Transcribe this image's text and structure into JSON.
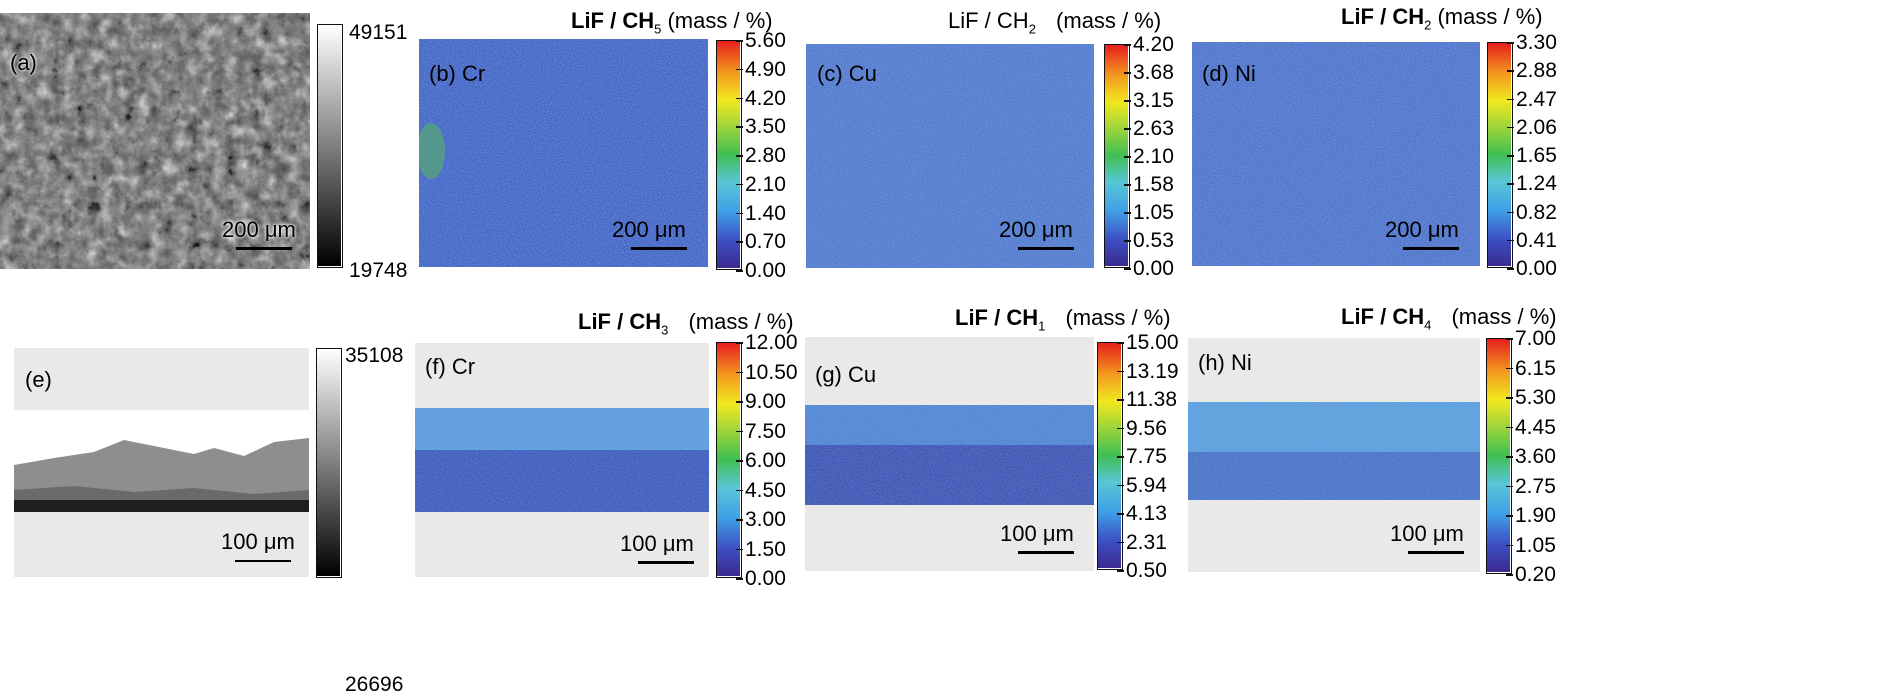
{
  "top_row": {
    "a": {
      "label": "(a)",
      "scale": "200 μm",
      "cbar_max": "49151",
      "cbar_min": "19748"
    },
    "b": {
      "label": "(b) Cr",
      "title_main": "LiF / CH",
      "title_sub": "5",
      "title_unit": "(mass / %)",
      "ticks": [
        "5.60",
        "4.90",
        "4.20",
        "3.50",
        "2.80",
        "2.10",
        "1.40",
        "0.70",
        "0.00"
      ],
      "scale": "200 μm"
    },
    "c": {
      "label": "(c) Cu",
      "title_main": "LiF / CH",
      "title_sub": "2",
      "title_unit": "(mass / %)",
      "ticks": [
        "4.20",
        "3.68",
        "3.15",
        "2.63",
        "2.10",
        "1.58",
        "1.05",
        "0.53",
        "0.00"
      ],
      "scale": "200 μm"
    },
    "d": {
      "label": "(d) Ni",
      "title_main": "LiF / CH",
      "title_sub": "2",
      "title_unit": "(mass / %)",
      "ticks": [
        "3.30",
        "2.88",
        "2.47",
        "2.06",
        "1.65",
        "1.24",
        "0.82",
        "0.41",
        "0.00"
      ],
      "scale": "200 μm"
    }
  },
  "bottom_row": {
    "e": {
      "label": "(e)",
      "scale": "100 μm",
      "cbar_max": "35108",
      "cbar_min": "26696"
    },
    "f": {
      "label": "(f) Cr",
      "title_main": "LiF / CH",
      "title_sub": "3",
      "title_unit": "(mass / %)",
      "ticks": [
        "12.00",
        "10.50",
        "9.00",
        "7.50",
        "6.00",
        "4.50",
        "3.00",
        "1.50",
        "0.00"
      ],
      "scale": "100 μm"
    },
    "g": {
      "label": "(g) Cu",
      "title_main": "LiF / CH",
      "title_sub": "1",
      "title_unit": "(mass / %)",
      "ticks": [
        "15.00",
        "13.19",
        "11.38",
        "9.56",
        "7.75",
        "5.94",
        "4.13",
        "2.31",
        "0.50"
      ],
      "scale": "100 μm"
    },
    "h": {
      "label": "(h) Ni",
      "title_main": "LiF / CH",
      "title_sub": "4",
      "title_unit": "(mass / %)",
      "ticks": [
        "7.00",
        "6.15",
        "5.30",
        "4.45",
        "3.60",
        "2.75",
        "1.90",
        "1.05",
        "0.20"
      ],
      "scale": "100 μm"
    }
  },
  "colors": {
    "map_blue": "#3a5bbf",
    "map_light": "#5aa8e0",
    "gray_bg": "#ebe9e8"
  }
}
